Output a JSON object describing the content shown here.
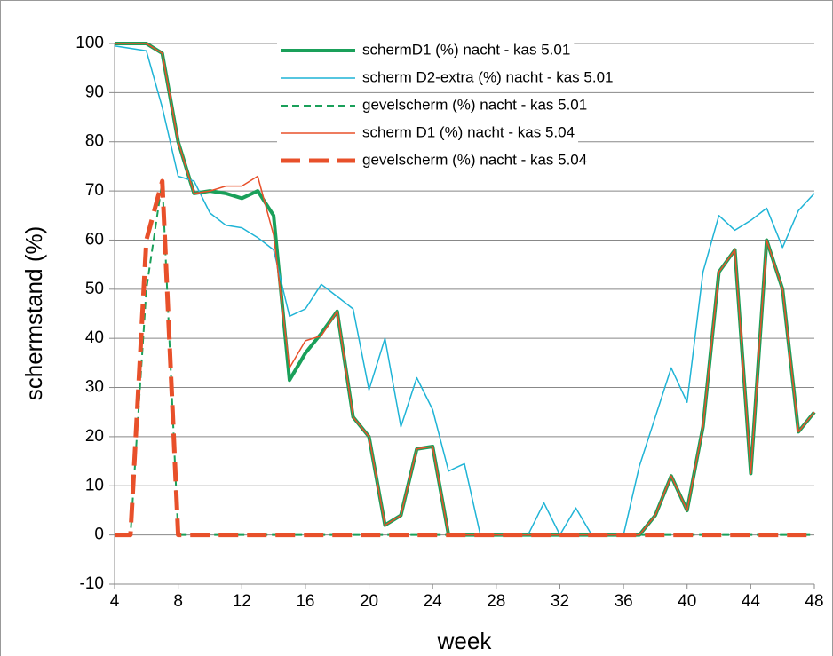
{
  "chart_data": {
    "type": "line",
    "x_label": "week",
    "y_label": "schermstand (%)",
    "x": [
      4,
      5,
      6,
      7,
      8,
      9,
      10,
      11,
      12,
      13,
      14,
      15,
      16,
      17,
      18,
      19,
      20,
      21,
      22,
      23,
      24,
      25,
      26,
      27,
      28,
      29,
      30,
      31,
      32,
      33,
      34,
      35,
      36,
      37,
      38,
      39,
      40,
      41,
      42,
      43,
      44,
      45,
      46,
      47,
      48
    ],
    "xlim": [
      4,
      48
    ],
    "xticks": [
      4,
      8,
      12,
      16,
      20,
      24,
      28,
      32,
      36,
      40,
      44,
      48
    ],
    "ylim": [
      -10,
      100
    ],
    "yticks": [
      -10,
      0,
      10,
      20,
      30,
      40,
      50,
      60,
      70,
      80,
      90,
      100
    ],
    "grid": true,
    "series": [
      {
        "name": "schermD1  (%) nacht - kas 5.01",
        "color": "#1aa05a",
        "width": 4,
        "dash": false,
        "values": [
          100,
          100,
          100,
          98,
          80,
          69.5,
          70,
          69.5,
          68.5,
          70,
          65,
          31.5,
          37,
          41,
          45.5,
          24,
          20,
          2,
          4,
          17.5,
          18,
          0,
          0,
          0,
          0,
          0,
          0,
          0,
          0,
          0,
          0,
          0,
          0,
          0,
          4,
          12,
          5,
          22,
          53.5,
          58,
          12.5,
          60,
          50,
          21,
          25
        ]
      },
      {
        "name": "scherm D2-extra  (%)  nacht - kas 5.01",
        "color": "#1fb4d6",
        "width": 1.5,
        "dash": false,
        "values": [
          99.5,
          99,
          98.5,
          87,
          73,
          72,
          65.5,
          63,
          62.5,
          60.5,
          58,
          44.5,
          46,
          51,
          48.5,
          46,
          29.5,
          40,
          22,
          32,
          25.5,
          13,
          14.5,
          0,
          0,
          0,
          0,
          6.5,
          0,
          5.5,
          0,
          0,
          0,
          14,
          24,
          34,
          27,
          53.5,
          65,
          62,
          64,
          66.5,
          58.5,
          66,
          69.5
        ]
      },
      {
        "name": "gevelscherm (%)  nacht - kas 5.01",
        "color": "#1aa05a",
        "width": 2,
        "dash": true,
        "values": [
          0,
          0,
          50,
          72,
          0,
          0,
          0,
          0,
          0,
          0,
          0,
          0,
          0,
          0,
          0,
          0,
          0,
          0,
          0,
          0,
          0,
          0,
          0,
          0,
          0,
          0,
          0,
          0,
          0,
          0,
          0,
          0,
          0,
          0,
          0,
          0,
          0,
          0,
          0,
          0,
          0,
          0,
          0,
          0,
          0
        ]
      },
      {
        "name": "scherm D1 (%) nacht - kas 5.04",
        "color": "#e8502a",
        "width": 1.5,
        "dash": false,
        "values": [
          100,
          100,
          100,
          98,
          80,
          69.5,
          70,
          71,
          71,
          73,
          61,
          34,
          39.5,
          40.5,
          45.5,
          24,
          20,
          2,
          4,
          17.5,
          18,
          0,
          0,
          0,
          0,
          0,
          0,
          0,
          0,
          0,
          0,
          0,
          0,
          0,
          4,
          12,
          5,
          22,
          53.5,
          58,
          12.5,
          60,
          50,
          21,
          25
        ]
      },
      {
        "name": "gevelscherm (%)  nacht - kas 5.04",
        "color": "#e8502a",
        "width": 5,
        "dash": true,
        "values": [
          0,
          0,
          60,
          72,
          0,
          0,
          0,
          0,
          0,
          0,
          0,
          0,
          0,
          0,
          0,
          0,
          0,
          0,
          0,
          0,
          0,
          0,
          0,
          0,
          0,
          0,
          0,
          0,
          0,
          0,
          0,
          0,
          0,
          0,
          0,
          0,
          0,
          0,
          0,
          0,
          0,
          0,
          0,
          0,
          0
        ]
      }
    ]
  }
}
